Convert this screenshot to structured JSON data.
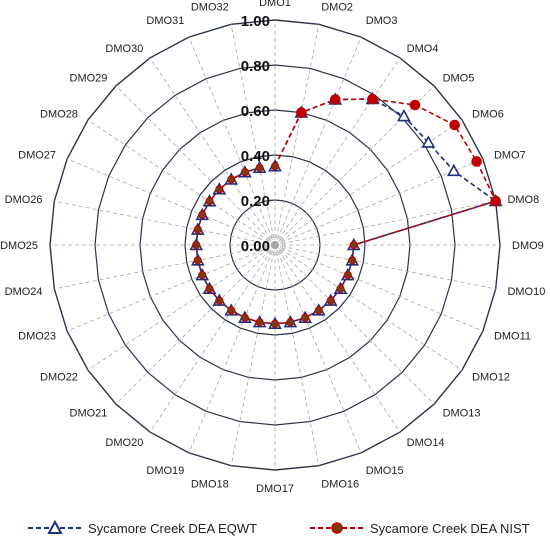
{
  "chart_data": {
    "type": "radar",
    "categories": [
      "DMO1",
      "DMO2",
      "DMO3",
      "DMO4",
      "DMO5",
      "DMO6",
      "DMO7",
      "DMO8",
      "DMO9",
      "DMO10",
      "DMO11",
      "DMO12",
      "DMO13",
      "DMO14",
      "DMO15",
      "DMO16",
      "DMO17",
      "DMO18",
      "DMO19",
      "DMO20",
      "DMO21",
      "DMO22",
      "DMO23",
      "DMO24",
      "DMO25",
      "DMO26",
      "DMO27",
      "DMO28",
      "DMO29",
      "DMO30",
      "DMO31",
      "DMO32"
    ],
    "r_ticks": [
      "0.00",
      "0.20",
      "0.40",
      "0.60",
      "0.80",
      "1.00"
    ],
    "r_range": [
      0,
      1
    ],
    "series": [
      {
        "name": "Sycamore Creek DEA EQWT",
        "color": "#1f2f7a",
        "marker": "triangle-open",
        "line": "dashed",
        "values": [
          0.35,
          0.6,
          0.7,
          0.78,
          0.81,
          0.82,
          0.86,
          1.0,
          0.35,
          0.35,
          0.35,
          0.35,
          0.35,
          0.35,
          0.35,
          0.35,
          0.35,
          0.35,
          0.35,
          0.35,
          0.35,
          0.35,
          0.35,
          0.35,
          0.35,
          0.35,
          0.35,
          0.35,
          0.35,
          0.35,
          0.35,
          0.35
        ]
      },
      {
        "name": "Sycamore Creek DEA NIST",
        "color": "#c00000",
        "marker": "circle-filled",
        "line": "dashed",
        "values": [
          0.35,
          0.6,
          0.7,
          0.78,
          0.88,
          0.96,
          0.97,
          1.0,
          0.35,
          0.35,
          0.35,
          0.35,
          0.35,
          0.35,
          0.35,
          0.35,
          0.35,
          0.35,
          0.35,
          0.35,
          0.35,
          0.35,
          0.35,
          0.35,
          0.35,
          0.35,
          0.35,
          0.35,
          0.35,
          0.35,
          0.35,
          0.35
        ]
      }
    ],
    "legend_position": "bottom",
    "grid": true
  },
  "legend": {
    "left_label": "Sycamore Creek DEA EQWT",
    "right_label": "Sycamore Creek DEA NIST"
  },
  "colors": {
    "grid_ring": "#2a3348",
    "spoke": "#a6a6a6",
    "eqwt": "#1f2f7a",
    "nist": "#c00000",
    "nist_fill_inner": "#7a3b10"
  }
}
